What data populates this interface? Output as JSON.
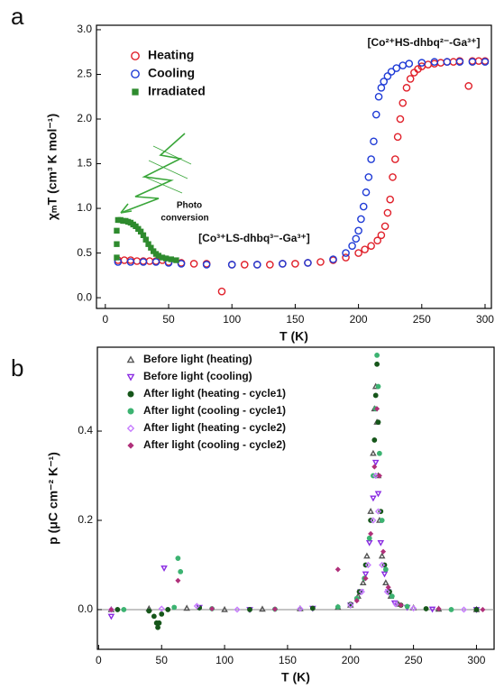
{
  "chart_data": [
    {
      "type": "scatter",
      "panel": "a",
      "xlabel": "T (K)",
      "ylabel": "χₘT (cm³ K mol⁻¹)",
      "annotations": [
        "[Co²⁺HS-dhbq²⁻-Ga³⁺]",
        "[Co³⁺LS-dhbq³⁻-Ga³⁺]",
        "Photo",
        "conversion"
      ],
      "xlim": [
        -7,
        305
      ],
      "xticks": [
        0,
        50,
        100,
        150,
        200,
        250,
        300
      ],
      "ylim": [
        -0.12,
        3.05
      ],
      "yticks": [
        {
          "value": 0,
          "label": "0.0"
        },
        0.5,
        {
          "value": 1,
          "label": "1.0"
        },
        1.5,
        {
          "value": 2,
          "label": "2.0"
        },
        2.5,
        {
          "value": 3,
          "label": "3.0"
        }
      ],
      "legend": "upper left",
      "zero_line": false,
      "series": [
        {
          "name": "Heating",
          "color": "#e0202a",
          "marker": "circle-open",
          "x": [
            10,
            15,
            20,
            25,
            30,
            35,
            40,
            45,
            50,
            60,
            70,
            80,
            92,
            100,
            110,
            120,
            130,
            140,
            150,
            160,
            170,
            180,
            190,
            200,
            205,
            210,
            215,
            218,
            221,
            223,
            225,
            227,
            229,
            231,
            233,
            235,
            238,
            241,
            244,
            247,
            250,
            255,
            260,
            265,
            270,
            275,
            280,
            287,
            290,
            295,
            300
          ],
          "values": [
            0.42,
            0.42,
            0.42,
            0.41,
            0.41,
            0.41,
            0.41,
            0.42,
            0.4,
            0.39,
            0.38,
            0.38,
            0.07,
            0.37,
            0.37,
            0.37,
            0.37,
            0.38,
            0.38,
            0.39,
            0.4,
            0.42,
            0.45,
            0.5,
            0.54,
            0.58,
            0.64,
            0.7,
            0.8,
            0.95,
            1.1,
            1.35,
            1.55,
            1.8,
            2.0,
            2.18,
            2.35,
            2.45,
            2.52,
            2.56,
            2.59,
            2.61,
            2.62,
            2.63,
            2.64,
            2.64,
            2.65,
            2.37,
            2.65,
            2.65,
            2.65
          ]
        },
        {
          "name": "Cooling",
          "color": "#1f3bd6",
          "marker": "circle-open",
          "x": [
            10,
            20,
            30,
            40,
            50,
            60,
            80,
            100,
            120,
            140,
            160,
            180,
            190,
            195,
            198,
            200,
            202,
            204,
            206,
            208,
            210,
            212,
            214,
            216,
            218,
            220,
            223,
            226,
            230,
            235,
            240,
            250,
            260,
            270,
            280,
            290,
            300
          ],
          "values": [
            0.4,
            0.4,
            0.4,
            0.4,
            0.39,
            0.38,
            0.37,
            0.37,
            0.37,
            0.38,
            0.39,
            0.43,
            0.5,
            0.58,
            0.66,
            0.75,
            0.88,
            1.02,
            1.18,
            1.35,
            1.55,
            1.75,
            2.05,
            2.25,
            2.35,
            2.42,
            2.48,
            2.53,
            2.57,
            2.6,
            2.62,
            2.63,
            2.64,
            2.64,
            2.64,
            2.64,
            2.64
          ]
        },
        {
          "name": "Irradiated",
          "color": "#2e8b2e",
          "marker": "square",
          "x": [
            9,
            9,
            9,
            10,
            12,
            14,
            16,
            18,
            20,
            22,
            24,
            26,
            28,
            30,
            32,
            34,
            36,
            38,
            40,
            42,
            45,
            48,
            52,
            56
          ],
          "values": [
            0.45,
            0.6,
            0.75,
            0.87,
            0.87,
            0.86,
            0.86,
            0.85,
            0.84,
            0.82,
            0.8,
            0.77,
            0.74,
            0.7,
            0.65,
            0.6,
            0.56,
            0.52,
            0.49,
            0.47,
            0.45,
            0.44,
            0.43,
            0.42
          ]
        }
      ]
    },
    {
      "type": "scatter",
      "panel": "b",
      "xlabel": "T (K)",
      "ylabel": "p (μC cm⁻² K⁻¹)",
      "xlim": [
        -1,
        314
      ],
      "xticks": [
        0,
        50,
        100,
        150,
        200,
        250,
        300
      ],
      "ylim": [
        -0.089,
        0.588
      ],
      "yticks": [
        {
          "value": 0,
          "label": "0.0"
        },
        0.2,
        0.4
      ],
      "legend": "upper left",
      "zero_line": true,
      "series": [
        {
          "name": "Before light (heating)",
          "color": "#555555",
          "marker": "tri-up-open",
          "x": [
            10,
            40,
            70,
            100,
            130,
            160,
            190,
            200,
            206,
            210,
            213,
            216,
            218,
            219,
            220,
            221,
            222,
            223,
            225,
            228,
            232,
            238,
            250,
            270,
            300
          ],
          "values": [
            0.0,
            0.002,
            0.003,
            0.0,
            0.001,
            0.002,
            0.005,
            0.01,
            0.03,
            0.06,
            0.12,
            0.22,
            0.35,
            0.45,
            0.5,
            0.42,
            0.3,
            0.2,
            0.12,
            0.06,
            0.03,
            0.012,
            0.004,
            0.001,
            0.0
          ]
        },
        {
          "name": "Before light (cooling)",
          "color": "#8a2be2",
          "marker": "tri-down-open",
          "x": [
            10,
            52,
            80,
            120,
            170,
            200,
            208,
            212,
            215,
            218,
            220,
            222,
            224,
            227,
            230,
            235,
            245,
            265,
            300
          ],
          "values": [
            -0.015,
            0.093,
            0.005,
            0.0,
            0.003,
            0.01,
            0.04,
            0.08,
            0.15,
            0.25,
            0.33,
            0.26,
            0.15,
            0.08,
            0.04,
            0.015,
            0.005,
            0.001,
            0.0
          ]
        },
        {
          "name": "After light (heating - cycle1)",
          "color": "#16561a",
          "marker": "circle",
          "x": [
            15,
            40,
            44,
            46,
            47,
            48,
            50,
            55,
            80,
            120,
            170,
            200,
            207,
            212,
            216,
            219,
            220,
            221,
            222,
            224,
            227,
            231,
            240,
            260,
            300
          ],
          "values": [
            0.0,
            -0.003,
            -0.015,
            -0.03,
            -0.04,
            -0.03,
            -0.01,
            0.0,
            0.004,
            0.0,
            0.003,
            0.012,
            0.04,
            0.1,
            0.2,
            0.38,
            0.48,
            0.55,
            0.42,
            0.22,
            0.1,
            0.04,
            0.01,
            0.002,
            0.0
          ]
        },
        {
          "name": "After light (cooling - cycle1)",
          "color": "#3cb371",
          "marker": "circle",
          "x": [
            20,
            60,
            63,
            65,
            90,
            140,
            190,
            205,
            211,
            215,
            218,
            220,
            221,
            222,
            223,
            225,
            228,
            233,
            245,
            280
          ],
          "values": [
            0.0,
            0.005,
            0.115,
            0.085,
            0.002,
            0.001,
            0.006,
            0.025,
            0.07,
            0.16,
            0.3,
            0.45,
            0.57,
            0.5,
            0.35,
            0.2,
            0.09,
            0.03,
            0.007,
            0.0
          ]
        },
        {
          "name": "After light (heating - cycle2)",
          "color": "#c77dff",
          "marker": "diamond-open",
          "x": [
            10,
            50,
            78,
            110,
            160,
            200,
            209,
            214,
            218,
            220,
            222,
            225,
            229,
            236,
            250,
            290
          ],
          "values": [
            0.0,
            0.002,
            0.008,
            0.0,
            0.002,
            0.01,
            0.04,
            0.1,
            0.2,
            0.3,
            0.22,
            0.1,
            0.04,
            0.012,
            0.003,
            0.0
          ]
        },
        {
          "name": "After light (cooling - cycle2)",
          "color": "#b0307a",
          "marker": "diamond",
          "x": [
            10,
            63,
            90,
            140,
            190,
            205,
            212,
            216,
            219,
            221,
            223,
            226,
            230,
            240,
            270,
            305
          ],
          "values": [
            0.0,
            0.065,
            0.002,
            0.001,
            0.09,
            0.02,
            0.07,
            0.17,
            0.32,
            0.45,
            0.3,
            0.13,
            0.05,
            0.01,
            0.002,
            0.0
          ]
        }
      ]
    }
  ]
}
